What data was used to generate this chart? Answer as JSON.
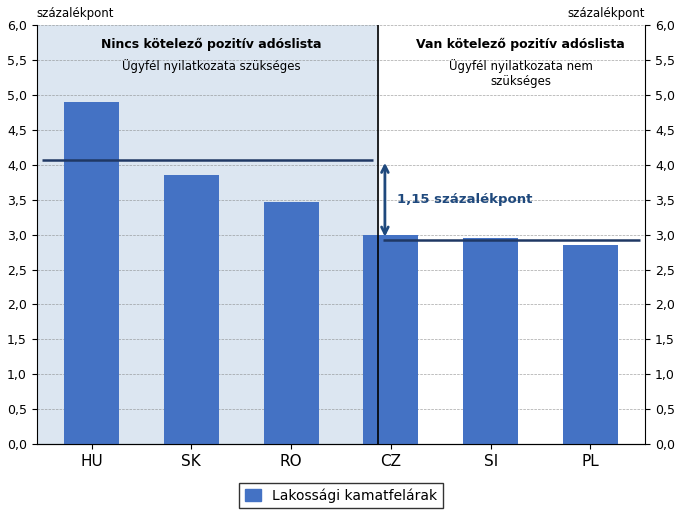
{
  "categories": [
    "HU",
    "SK",
    "RO",
    "CZ",
    "SI",
    "PL"
  ],
  "values": [
    4.9,
    3.85,
    3.47,
    3.0,
    2.95,
    2.85
  ],
  "bar_color": "#4472C4",
  "left_bg_color": "#DCE6F1",
  "left_title_bold": "Nincs kötelező pozitív adóslista",
  "left_subtitle": "Ügyfél nyilatkozata szükséges",
  "right_title_bold": "Van kötelező pozitív adóslista",
  "right_subtitle": "Ügyfél nyilatkozata nem\nszükséges",
  "ylabel": "százalékpont",
  "ylim": [
    0.0,
    6.0
  ],
  "yticks": [
    0.0,
    0.5,
    1.0,
    1.5,
    2.0,
    2.5,
    3.0,
    3.5,
    4.0,
    4.5,
    5.0,
    5.5,
    6.0
  ],
  "line_left_y": 4.07,
  "line_right_y": 2.93,
  "arrow_text": "1,15 százalékpont",
  "legend_label": "Lakossági kamatfelárak",
  "arrow_color": "#1F497D",
  "line_color": "#1F3864",
  "bar_width": 0.55,
  "xlim_left": -0.55,
  "xlim_right": 5.55,
  "divider_x": 2.87
}
